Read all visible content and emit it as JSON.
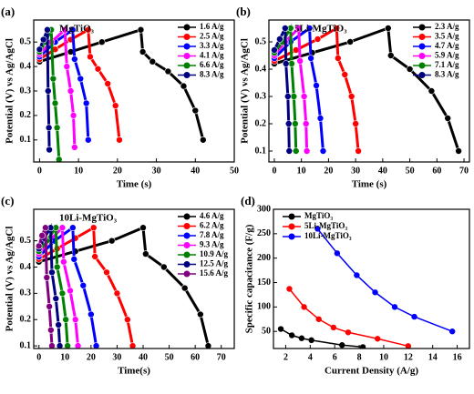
{
  "chart_data": [
    {
      "type": "line",
      "panel_label": "(a)",
      "title": "MgTiO₃",
      "xlabel": "Time (s)",
      "ylabel": "Potential (V) vs Ag/AgCl",
      "xlim": [
        -1.5,
        50
      ],
      "xticks": [
        0,
        10,
        20,
        30,
        40,
        50
      ],
      "ylim": [
        0.01,
        0.59
      ],
      "yticks": [
        0.1,
        0.2,
        0.3,
        0.4,
        0.5
      ],
      "legend": "upper right",
      "series": [
        {
          "name": "1.6 A/g",
          "color": "#000000",
          "x": [
            0,
            8,
            16,
            26,
            26.5,
            29,
            33,
            37,
            40,
            42
          ],
          "values": [
            0.42,
            0.46,
            0.5,
            0.55,
            0.46,
            0.42,
            0.38,
            0.32,
            0.22,
            0.1
          ]
        },
        {
          "name": "2.5 A/g",
          "color": "#ff0000",
          "x": [
            0,
            4,
            8,
            12.5,
            13,
            15,
            17.5,
            19.5,
            20.5
          ],
          "values": [
            0.43,
            0.47,
            0.51,
            0.55,
            0.44,
            0.39,
            0.33,
            0.24,
            0.1
          ]
        },
        {
          "name": "3.3 A/g",
          "color": "#0000ff",
          "x": [
            0,
            4,
            8.5,
            9,
            10.5,
            12,
            12.5
          ],
          "values": [
            0.44,
            0.5,
            0.55,
            0.43,
            0.35,
            0.25,
            0.1
          ]
        },
        {
          "name": "4.1 A/g",
          "color": "#ff00ff",
          "x": [
            0,
            3,
            6.5,
            7,
            8,
            8.7,
            9
          ],
          "values": [
            0.45,
            0.5,
            0.55,
            0.4,
            0.3,
            0.2,
            0.07
          ]
        },
        {
          "name": "6.6 A/g",
          "color": "#008000",
          "x": [
            0,
            1.5,
            3,
            3.5,
            4,
            4.5,
            5
          ],
          "values": [
            0.46,
            0.5,
            0.55,
            0.35,
            0.25,
            0.15,
            0.02
          ]
        },
        {
          "name": "8.3 A/g",
          "color": "#000080",
          "x": [
            0,
            1,
            2,
            2.2,
            2.4,
            2.5
          ],
          "values": [
            0.47,
            0.51,
            0.55,
            0.3,
            0.15,
            0.06
          ]
        }
      ]
    },
    {
      "type": "line",
      "panel_label": "(b)",
      "title": "5Li-MgTiO₃",
      "xlabel": "Time (s)",
      "ylabel": "Potential (V) vs Ag/AgCl",
      "xlim": [
        -2,
        72
      ],
      "xticks": [
        0,
        10,
        20,
        30,
        40,
        50,
        60,
        70
      ],
      "ylim": [
        0.06,
        0.58
      ],
      "yticks": [
        0.1,
        0.2,
        0.3,
        0.4,
        0.5
      ],
      "legend": "upper right",
      "series": [
        {
          "name": "2.3 A/g",
          "color": "#000000",
          "x": [
            0,
            14,
            28,
            42,
            43,
            50,
            58,
            64,
            68
          ],
          "values": [
            0.42,
            0.46,
            0.5,
            0.55,
            0.45,
            0.4,
            0.32,
            0.22,
            0.1
          ]
        },
        {
          "name": "3.5 A/g",
          "color": "#ff0000",
          "x": [
            0,
            8,
            16,
            23,
            23.5,
            26,
            28.5,
            30,
            31
          ],
          "values": [
            0.43,
            0.47,
            0.51,
            0.55,
            0.44,
            0.38,
            0.3,
            0.2,
            0.1
          ]
        },
        {
          "name": "4.7 A/g",
          "color": "#0000ff",
          "x": [
            0,
            6,
            13,
            13.5,
            15.5,
            17,
            18
          ],
          "values": [
            0.44,
            0.5,
            0.55,
            0.44,
            0.34,
            0.22,
            0.1
          ]
        },
        {
          "name": "5.9 A/g",
          "color": "#ff00ff",
          "x": [
            0,
            4,
            9,
            9.5,
            11,
            11.7,
            12
          ],
          "values": [
            0.45,
            0.5,
            0.55,
            0.43,
            0.3,
            0.2,
            0.1
          ]
        },
        {
          "name": "7.1 A/g",
          "color": "#008000",
          "x": [
            0,
            3,
            6,
            6.4,
            7.2,
            7.7,
            8
          ],
          "values": [
            0.46,
            0.5,
            0.55,
            0.42,
            0.3,
            0.2,
            0.1
          ]
        },
        {
          "name": "8.3 A/g",
          "color": "#000080",
          "x": [
            0,
            2,
            4,
            4.3,
            5,
            5.3,
            5.5
          ],
          "values": [
            0.47,
            0.51,
            0.55,
            0.42,
            0.3,
            0.2,
            0.1
          ]
        }
      ]
    },
    {
      "type": "line",
      "panel_label": "(c)",
      "title": "10Li-MgTiO₃",
      "xlabel": "Time(s)",
      "ylabel": "Potential (V) vs Ag/AgCl",
      "xlim": [
        -2,
        75
      ],
      "xticks": [
        0,
        10,
        20,
        30,
        40,
        50,
        60,
        70
      ],
      "ylim": [
        0.09,
        0.62
      ],
      "yticks": [
        0.1,
        0.2,
        0.3,
        0.4,
        0.5
      ],
      "legend": "upper right",
      "series": [
        {
          "name": "4.6 A/g",
          "color": "#000000",
          "x": [
            0,
            14,
            28,
            40,
            41,
            48,
            56,
            62,
            65
          ],
          "values": [
            0.42,
            0.46,
            0.5,
            0.55,
            0.45,
            0.4,
            0.32,
            0.22,
            0.1
          ]
        },
        {
          "name": "6.2 A/g",
          "color": "#ff0000",
          "x": [
            0,
            7,
            14,
            21,
            21.5,
            26,
            30,
            34,
            36
          ],
          "values": [
            0.43,
            0.47,
            0.51,
            0.55,
            0.44,
            0.38,
            0.3,
            0.2,
            0.1
          ]
        },
        {
          "name": "7.8 A/g",
          "color": "#0000ff",
          "x": [
            0,
            6,
            13,
            13.5,
            17,
            20,
            22
          ],
          "values": [
            0.44,
            0.5,
            0.55,
            0.43,
            0.33,
            0.22,
            0.1
          ]
        },
        {
          "name": "9.3 A/g",
          "color": "#ff00ff",
          "x": [
            0,
            4,
            9,
            9.5,
            12,
            14,
            15
          ],
          "values": [
            0.45,
            0.5,
            0.55,
            0.42,
            0.31,
            0.2,
            0.1
          ]
        },
        {
          "name": "10.9 A/g",
          "color": "#008000",
          "x": [
            0,
            3,
            6.5,
            7,
            9,
            10.3,
            11
          ],
          "values": [
            0.46,
            0.5,
            0.55,
            0.4,
            0.3,
            0.2,
            0.1
          ]
        },
        {
          "name": "12.5 A/g",
          "color": "#000080",
          "x": [
            0,
            2,
            4.5,
            5,
            6.5,
            7.5,
            8
          ],
          "values": [
            0.47,
            0.51,
            0.55,
            0.38,
            0.28,
            0.18,
            0.1
          ]
        },
        {
          "name": "15.6 A/g",
          "color": "#800080",
          "x": [
            0,
            1.2,
            2.5,
            3,
            4,
            4.6,
            5
          ],
          "values": [
            0.48,
            0.52,
            0.55,
            0.36,
            0.25,
            0.16,
            0.1
          ]
        }
      ]
    },
    {
      "type": "line",
      "panel_label": "(d)",
      "xlabel": "Current Density (A/g)",
      "ylabel": "Specific capacitance (F/g)",
      "xlim": [
        1,
        17
      ],
      "xticks": [
        2,
        4,
        6,
        8,
        10,
        12,
        14,
        16
      ],
      "ylim": [
        15,
        300
      ],
      "yticks": [
        50,
        100,
        150,
        200,
        250,
        300
      ],
      "legend": "upper left",
      "series": [
        {
          "name": "MgTiO₃",
          "color": "#000000",
          "x": [
            1.6,
            2.5,
            3.3,
            4.1,
            6.6,
            8.3
          ],
          "values": [
            55,
            42,
            36,
            32,
            22,
            18
          ]
        },
        {
          "name": "5Li-MgTiO₃",
          "color": "#ff0000",
          "x": [
            2.3,
            3.5,
            4.7,
            5.9,
            7.1,
            9.5,
            12
          ],
          "values": [
            137,
            100,
            75,
            58,
            48,
            35,
            20
          ]
        },
        {
          "name": "10Li-MgTiO₃",
          "color": "#0000ff",
          "x": [
            4.6,
            6.2,
            7.8,
            9.3,
            10.9,
            12.5,
            15.6
          ],
          "values": [
            260,
            210,
            165,
            130,
            100,
            80,
            50
          ]
        }
      ]
    }
  ]
}
